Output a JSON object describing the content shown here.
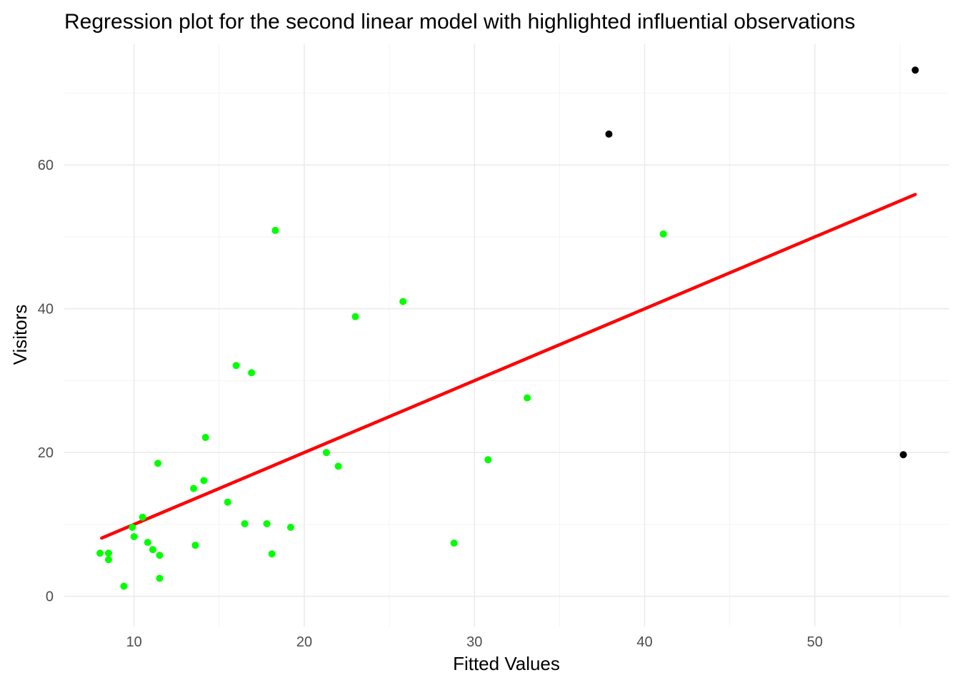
{
  "chart_data": {
    "type": "scatter",
    "title": "Regression plot for the second linear model with highlighted influential observations",
    "xlabel": "Fitted Values",
    "ylabel": "Visitors",
    "xlim": [
      5.9,
      57.9
    ],
    "ylim": [
      -4.2,
      76.8
    ],
    "x_ticks": [
      10,
      20,
      30,
      40,
      50
    ],
    "y_ticks": [
      0,
      20,
      40,
      60
    ],
    "grid": true,
    "legend": "none",
    "colors": {
      "normal": "#00ff00",
      "influential": "#000000",
      "fit_line": "#ff0000"
    },
    "fit_line": {
      "x": [
        8.1,
        55.9
      ],
      "y": [
        8.1,
        55.9
      ]
    },
    "series": [
      {
        "role": "normal",
        "points": [
          [
            8.0,
            6.0
          ],
          [
            8.5,
            5.1
          ],
          [
            8.5,
            6.0
          ],
          [
            9.4,
            1.4
          ],
          [
            9.9,
            9.6
          ],
          [
            10.0,
            8.3
          ],
          [
            10.5,
            11.0
          ],
          [
            10.8,
            7.5
          ],
          [
            11.1,
            6.5
          ],
          [
            11.4,
            18.5
          ],
          [
            11.5,
            2.5
          ],
          [
            11.5,
            5.7
          ],
          [
            13.5,
            15.0
          ],
          [
            13.6,
            7.1
          ],
          [
            14.1,
            16.1
          ],
          [
            14.2,
            22.1
          ],
          [
            15.5,
            13.1
          ],
          [
            16.0,
            32.1
          ],
          [
            16.5,
            10.1
          ],
          [
            16.9,
            31.1
          ],
          [
            17.8,
            10.1
          ],
          [
            18.1,
            5.9
          ],
          [
            18.3,
            50.9
          ],
          [
            19.2,
            9.6
          ],
          [
            21.3,
            20.0
          ],
          [
            22.0,
            18.1
          ],
          [
            23.0,
            38.9
          ],
          [
            25.8,
            41.0
          ],
          [
            28.8,
            7.4
          ],
          [
            30.8,
            19.0
          ],
          [
            33.1,
            27.6
          ],
          [
            41.1,
            50.4
          ]
        ]
      },
      {
        "role": "influential",
        "points": [
          [
            37.9,
            64.3
          ],
          [
            55.2,
            19.7
          ],
          [
            55.9,
            73.2
          ]
        ]
      }
    ]
  }
}
